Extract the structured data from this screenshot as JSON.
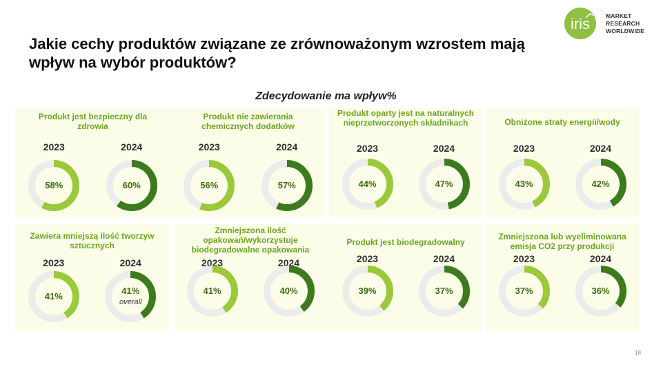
{
  "header": {
    "title": "Jakie cechy produktów związane ze zrównoważonym wzrostem mają wpływ na wybór produktów?",
    "logo_mark": "iris",
    "logo_lines": [
      "MARKET",
      "RESEARCH",
      "WORLDWIDE"
    ]
  },
  "colors": {
    "color_2023": "#9cc93a",
    "color_2024": "#3d7a1e",
    "track": "#ececec",
    "panel_bg": "#fbfde8",
    "title_green": "#6aa51e"
  },
  "chart_data": {
    "type": "donut",
    "title": "Zdecydowanie ma wpływ%",
    "unit": "%",
    "years": [
      "2023",
      "2024"
    ],
    "items": [
      {
        "label": "Produkt jest bezpieczny dla zdrowia",
        "values": [
          58,
          60
        ],
        "labels": [
          "58%",
          "60%"
        ],
        "notes": [
          "",
          ""
        ]
      },
      {
        "label": "Produkt nie zawierania chemicznych dodatków",
        "values": [
          56,
          57
        ],
        "labels": [
          "56%",
          "57%"
        ],
        "notes": [
          "",
          ""
        ]
      },
      {
        "label": "Produkt oparty jest na naturalnych nieprzetworzonych składnikach",
        "values": [
          44,
          47
        ],
        "labels": [
          "44%",
          "47%"
        ],
        "notes": [
          "",
          ""
        ]
      },
      {
        "label": "Obniżone straty energii/wody",
        "values": [
          43,
          42
        ],
        "labels": [
          "43%",
          "42%"
        ],
        "notes": [
          "",
          ""
        ]
      },
      {
        "label": "Zawiera mniejszą ilość tworzyw sztucznych",
        "values": [
          41,
          41
        ],
        "labels": [
          "41%",
          "41%"
        ],
        "notes": [
          "",
          "overall"
        ]
      },
      {
        "label": "Zmniejszona ilość opakowań/wykorzystuje biodegradowalne opakowania",
        "values": [
          41,
          40
        ],
        "labels": [
          "41%",
          "40%"
        ],
        "notes": [
          "",
          ""
        ]
      },
      {
        "label": "Produkt jest biodegradowalny",
        "values": [
          39,
          37
        ],
        "labels": [
          "39%",
          "37%"
        ],
        "notes": [
          "",
          ""
        ]
      },
      {
        "label": "Zmniejszona lub wyeliminowana emisja CO2 przy produkcji",
        "values": [
          37,
          36
        ],
        "labels": [
          "37%",
          "36%"
        ],
        "notes": [
          "",
          ""
        ]
      }
    ]
  },
  "footer": {
    "page_number": "18"
  }
}
